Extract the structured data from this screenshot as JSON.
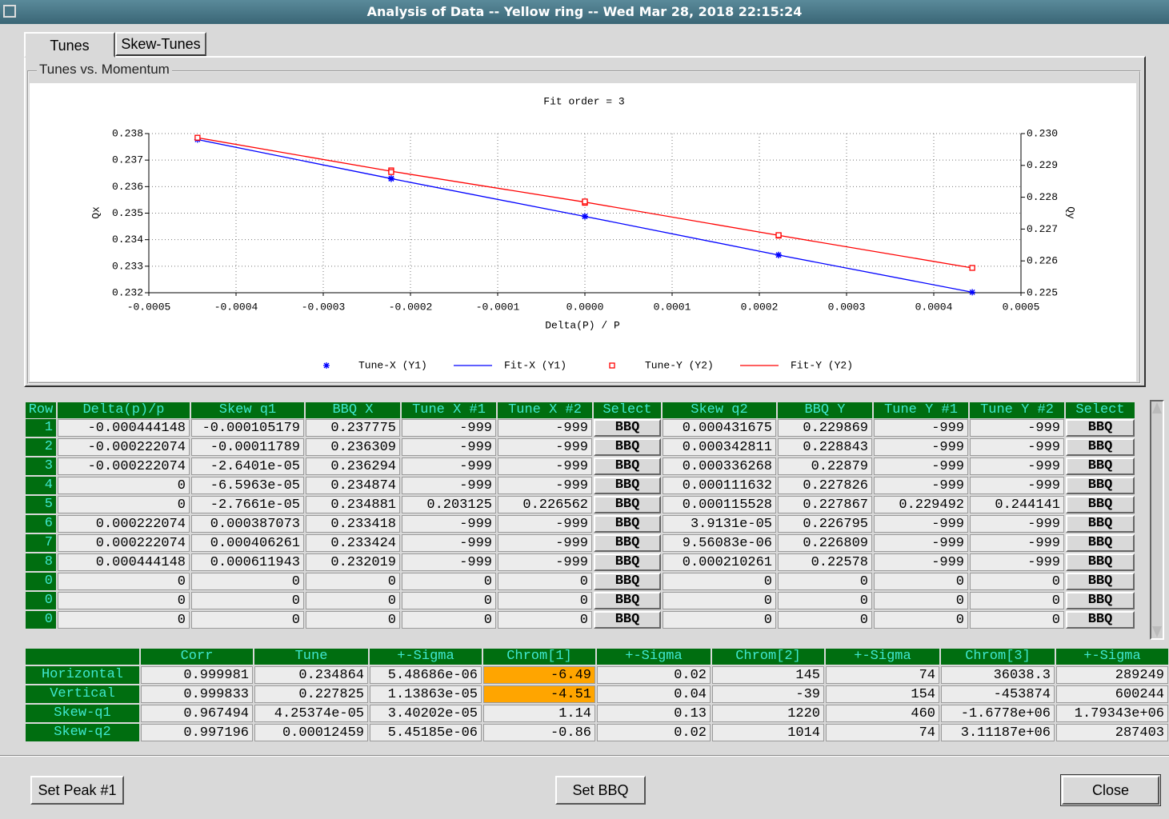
{
  "window": {
    "title": "Analysis of Data -- Yellow ring -- Wed Mar 28, 2018 22:15:24"
  },
  "tabs": [
    "Tunes",
    "Skew-Tunes"
  ],
  "group_label": "Tunes vs. Momentum",
  "chart_data": {
    "type": "line",
    "title": "Fit order = 3",
    "x_label": "Delta(P) / P",
    "y_label": "Qx",
    "y2_label": "Qy",
    "xlim": [
      -0.0005,
      0.0005
    ],
    "xticks": [
      -0.0005,
      -0.0004,
      -0.0003,
      -0.0002,
      -0.0001,
      {
        "value": 0,
        "label": "0.0000"
      },
      0.0001,
      0.0002,
      0.0003,
      0.0004,
      0.0005
    ],
    "ylim": [
      0.232,
      0.238
    ],
    "yticks": [
      0.232,
      0.233,
      0.234,
      0.235,
      0.236,
      0.237,
      0.238
    ],
    "y2lim": [
      0.225,
      0.23
    ],
    "y2ticks": [
      0.225,
      0.226,
      0.227,
      0.228,
      0.229,
      {
        "value": 0.23,
        "label": "0.230"
      }
    ],
    "grid": true,
    "legend": "bottom",
    "series": [
      {
        "name": "Tune-X (Y1)",
        "color": "#0000ff",
        "style": "star",
        "x": [
          -0.000444148,
          -0.000222074,
          -0.000222074,
          0,
          0,
          0.000222074,
          0.000222074,
          0.000444148
        ],
        "values": [
          0.237775,
          0.236309,
          0.236294,
          0.234874,
          0.234881,
          0.233418,
          0.233424,
          0.232019
        ]
      },
      {
        "name": "Fit-X (Y1)",
        "color": "#0000ff",
        "style": "line",
        "x": [
          -0.000444148,
          -0.000222074,
          0,
          0.000222074,
          0.000444148
        ],
        "values": [
          0.237774,
          0.236302,
          0.234877,
          0.233421,
          0.232019
        ]
      },
      {
        "name": "Tune-Y (Y2)",
        "color": "#ff0000",
        "style": "square",
        "axis": "y2",
        "x": [
          -0.000444148,
          -0.000222074,
          -0.000222074,
          0,
          0,
          0.000222074,
          0.000222074,
          0.000444148
        ],
        "values": [
          0.229869,
          0.228843,
          0.22879,
          0.227826,
          0.227867,
          0.226795,
          0.226809,
          0.22578
        ]
      },
      {
        "name": "Fit-Y (Y2)",
        "color": "#ff0000",
        "style": "line",
        "axis": "y2",
        "x": [
          -0.000444148,
          -0.000222074,
          0,
          0.000222074,
          0.000444148
        ],
        "values": [
          0.229869,
          0.228816,
          0.227847,
          0.226802,
          0.22578
        ]
      }
    ]
  },
  "table": {
    "headers": [
      "Row",
      "Delta(p)/p",
      "Skew q1",
      "BBQ X",
      "Tune X #1",
      "Tune X #2",
      "Select",
      "Skew q2",
      "BBQ Y",
      "Tune Y #1",
      "Tune Y #2",
      "Select"
    ],
    "rows": [
      [
        "1",
        "-0.000444148",
        "-0.000105179",
        "0.237775",
        "-999",
        "-999",
        "BBQ",
        "0.000431675",
        "0.229869",
        "-999",
        "-999",
        "BBQ"
      ],
      [
        "2",
        "-0.000222074",
        "-0.00011789",
        "0.236309",
        "-999",
        "-999",
        "BBQ",
        "0.000342811",
        "0.228843",
        "-999",
        "-999",
        "BBQ"
      ],
      [
        "3",
        "-0.000222074",
        "-2.6401e-05",
        "0.236294",
        "-999",
        "-999",
        "BBQ",
        "0.000336268",
        "0.22879",
        "-999",
        "-999",
        "BBQ"
      ],
      [
        "4",
        "0",
        "-6.5963e-05",
        "0.234874",
        "-999",
        "-999",
        "BBQ",
        "0.000111632",
        "0.227826",
        "-999",
        "-999",
        "BBQ"
      ],
      [
        "5",
        "0",
        "-2.7661e-05",
        "0.234881",
        "0.203125",
        "0.226562",
        "BBQ",
        "0.000115528",
        "0.227867",
        "0.229492",
        "0.244141",
        "BBQ"
      ],
      [
        "6",
        "0.000222074",
        "0.000387073",
        "0.233418",
        "-999",
        "-999",
        "BBQ",
        "3.9131e-05",
        "0.226795",
        "-999",
        "-999",
        "BBQ"
      ],
      [
        "7",
        "0.000222074",
        "0.000406261",
        "0.233424",
        "-999",
        "-999",
        "BBQ",
        "9.56083e-06",
        "0.226809",
        "-999",
        "-999",
        "BBQ"
      ],
      [
        "8",
        "0.000444148",
        "0.000611943",
        "0.232019",
        "-999",
        "-999",
        "BBQ",
        "0.000210261",
        "0.22578",
        "-999",
        "-999",
        "BBQ"
      ],
      [
        "0",
        "0",
        "0",
        "0",
        "0",
        "0",
        "BBQ",
        "0",
        "0",
        "0",
        "0",
        "BBQ"
      ],
      [
        "0",
        "0",
        "0",
        "0",
        "0",
        "0",
        "BBQ",
        "0",
        "0",
        "0",
        "0",
        "BBQ"
      ],
      [
        "0",
        "0",
        "0",
        "0",
        "0",
        "0",
        "BBQ",
        "0",
        "0",
        "0",
        "0",
        "BBQ"
      ]
    ]
  },
  "results": {
    "headers": [
      "Corr",
      "Tune",
      "+-Sigma",
      "Chrom[1]",
      "+-Sigma",
      "Chrom[2]",
      "+-Sigma",
      "Chrom[3]",
      "+-Sigma"
    ],
    "highlight_color": "#ffa500",
    "rows": [
      {
        "label": "Horizontal",
        "cells": [
          "0.999981",
          "0.234864",
          "5.48686e-06",
          "-6.49",
          "0.02",
          "145",
          "74",
          "36038.3",
          "289249"
        ],
        "highlight": [
          3
        ]
      },
      {
        "label": "Vertical",
        "cells": [
          "0.999833",
          "0.227825",
          "1.13863e-05",
          "-4.51",
          "0.04",
          "-39",
          "154",
          "-453874",
          "600244"
        ],
        "highlight": [
          3
        ]
      },
      {
        "label": "Skew-q1",
        "cells": [
          "0.967494",
          "4.25374e-05",
          "3.40202e-05",
          "1.14",
          "0.13",
          "1220",
          "460",
          "-1.6778e+06",
          "1.79343e+06"
        ],
        "highlight": []
      },
      {
        "label": "Skew-q2",
        "cells": [
          "0.997196",
          "0.00012459",
          "5.45185e-06",
          "-0.86",
          "0.02",
          "1014",
          "74",
          "3.11187e+06",
          "287403"
        ],
        "highlight": []
      }
    ]
  },
  "buttons": [
    "Set Peak #1",
    "Set BBQ",
    "Close"
  ]
}
